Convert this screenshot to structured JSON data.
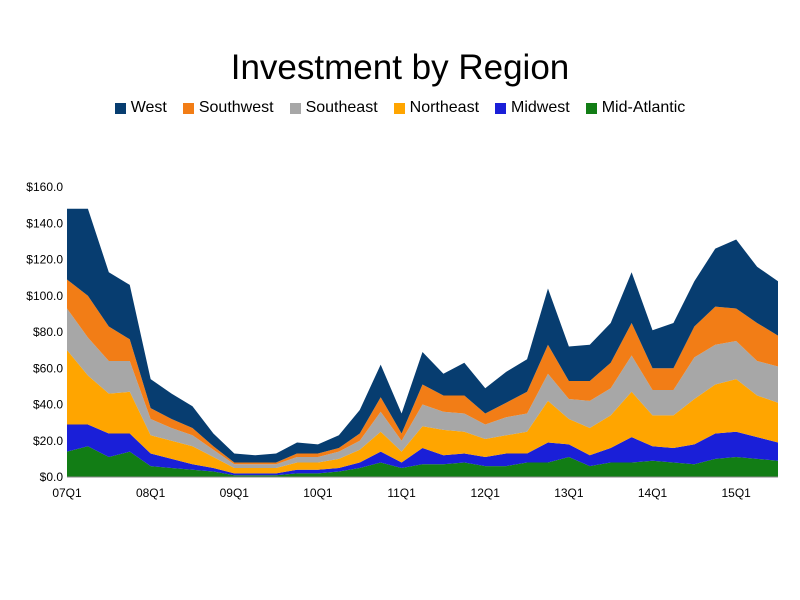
{
  "chart_data": {
    "type": "area",
    "stacked": true,
    "title": "Investment by Region",
    "legend_position": "top",
    "grid": false,
    "ylim": [
      0,
      160
    ],
    "y_ticks": [
      "$0.0",
      "$20.0",
      "$40.0",
      "$60.0",
      "$80.0",
      "$100.0",
      "$120.0",
      "$140.0",
      "$160.0"
    ],
    "x_ticks": [
      "07Q1",
      "08Q1",
      "09Q1",
      "10Q1",
      "11Q1",
      "12Q1",
      "13Q1",
      "14Q1",
      "15Q1"
    ],
    "x": [
      "07Q1",
      "07Q2",
      "07Q3",
      "07Q4",
      "08Q1",
      "08Q2",
      "08Q3",
      "08Q4",
      "09Q1",
      "09Q2",
      "09Q3",
      "09Q4",
      "10Q1",
      "10Q2",
      "10Q3",
      "10Q4",
      "11Q1",
      "11Q2",
      "11Q3",
      "11Q4",
      "12Q1",
      "12Q2",
      "12Q3",
      "12Q4",
      "13Q1",
      "13Q2",
      "13Q3",
      "13Q4",
      "14Q1",
      "14Q2",
      "14Q3",
      "14Q4",
      "15Q1",
      "15Q2",
      "15Q3"
    ],
    "series": [
      {
        "name": "Mid-Atlantic",
        "color": "#127d15",
        "values": [
          14,
          17,
          11,
          14,
          6,
          5,
          4,
          3,
          1,
          1,
          1,
          2,
          2,
          3,
          5,
          8,
          5,
          7,
          7,
          8,
          6,
          6,
          8,
          8,
          11,
          6,
          8,
          8,
          9,
          8,
          7,
          10,
          11,
          10,
          9
        ]
      },
      {
        "name": "Midwest",
        "color": "#1a1fd8",
        "values": [
          15,
          12,
          13,
          10,
          7,
          5,
          3,
          2,
          1,
          1,
          1,
          2,
          2,
          2,
          3,
          6,
          3,
          9,
          5,
          5,
          5,
          7,
          5,
          11,
          7,
          6,
          8,
          14,
          8,
          8,
          11,
          14,
          14,
          12,
          10
        ]
      },
      {
        "name": "Northeast",
        "color": "#ffa500",
        "values": [
          41,
          27,
          22,
          23,
          10,
          10,
          10,
          6,
          3,
          3,
          3,
          4,
          4,
          5,
          7,
          11,
          6,
          12,
          14,
          12,
          10,
          10,
          12,
          23,
          14,
          15,
          18,
          25,
          17,
          18,
          25,
          27,
          29,
          23,
          22
        ]
      },
      {
        "name": "Southeast",
        "color": "#a7a7a7",
        "values": [
          23,
          21,
          18,
          17,
          9,
          7,
          6,
          4,
          2,
          2,
          2,
          3,
          3,
          4,
          5,
          11,
          6,
          12,
          10,
          10,
          8,
          10,
          10,
          15,
          11,
          15,
          15,
          20,
          14,
          14,
          23,
          22,
          21,
          19,
          20
        ]
      },
      {
        "name": "Southwest",
        "color": "#f27d16",
        "values": [
          16,
          23,
          19,
          12,
          6,
          5,
          4,
          2,
          1,
          1,
          1,
          2,
          2,
          2,
          4,
          8,
          4,
          11,
          9,
          10,
          6,
          8,
          12,
          16,
          10,
          11,
          14,
          18,
          12,
          12,
          17,
          21,
          18,
          21,
          17
        ]
      },
      {
        "name": "West",
        "color": "#073d70",
        "values": [
          39,
          48,
          30,
          30,
          16,
          14,
          12,
          7,
          5,
          4,
          5,
          6,
          5,
          7,
          13,
          18,
          11,
          18,
          12,
          18,
          14,
          17,
          18,
          31,
          19,
          20,
          22,
          28,
          21,
          25,
          25,
          32,
          38,
          31,
          30
        ]
      }
    ]
  }
}
